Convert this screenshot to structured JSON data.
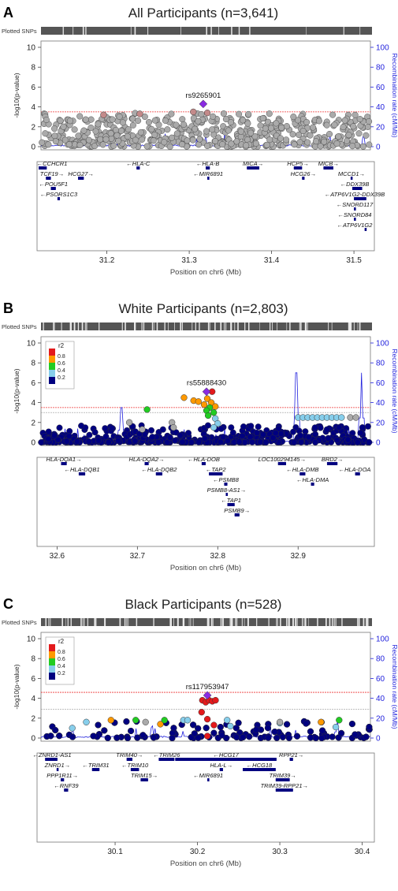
{
  "panels": [
    {
      "letter": "A",
      "title": "All Participants (n=3,641)",
      "plotted_snps_label": "Plotted SNPs",
      "lead_snp": "rs9265901",
      "ylabel": "-log10(p-value)",
      "ylabel_right": "Recombination rate (cM/Mb)",
      "xlabel": "Position on chr6 (Mb)",
      "has_legend": false
    },
    {
      "letter": "B",
      "title": "White Participants (n=2,803)",
      "plotted_snps_label": "Plotted SNPs",
      "lead_snp": "rs55888430",
      "ylabel": "-log10(p-value)",
      "ylabel_right": "Recombination rate (cM/Mb)",
      "xlabel": "Position on chr6 (Mb)",
      "has_legend": true
    },
    {
      "letter": "C",
      "title": "Black Participants (n=528)",
      "plotted_snps_label": "Plotted SNPs",
      "lead_snp": "rs117953947",
      "ylabel": "-log10(p-value)",
      "ylabel_right": "Recombination rate (cM/Mb)",
      "xlabel": "Position on chr6 (Mb)",
      "has_legend": true
    }
  ],
  "legend": {
    "title": "r2",
    "labels": [
      "0.8",
      "0.6",
      "0.4",
      "0.2"
    ],
    "colors": [
      "#e31a1c",
      "#ff9900",
      "#22cc22",
      "#87ceeb",
      "#000080"
    ]
  },
  "colors": {
    "recomb_line": "#2222dd",
    "sig_line": "#ee3333",
    "sugg_line": "#999999",
    "grey_point": "#aaaaaa",
    "lead": "#8a2be2",
    "gene": "#000080"
  },
  "chart_data": [
    {
      "type": "scatter",
      "title": "All Participants (n=3,641)",
      "xlabel": "Position on chr6 (Mb)",
      "ylabel": "-log10(p-value)",
      "y2label": "Recombination rate (cM/Mb)",
      "xlim": [
        31.12,
        31.52
      ],
      "ylim": [
        0,
        10
      ],
      "y2lim": [
        0,
        100
      ],
      "xticks": [
        "31.2",
        "31.3",
        "31.4",
        "31.5"
      ],
      "yticks": [
        "0",
        "2",
        "4",
        "6",
        "8",
        "10"
      ],
      "y2ticks": [
        "0",
        "20",
        "40",
        "60",
        "80",
        "100"
      ],
      "significance_line": 3.5,
      "suggestive_line": null,
      "lead_snp": {
        "name": "rs9265901",
        "x": 31.317,
        "y": 4.3
      },
      "highlight_points": [
        {
          "x": 31.305,
          "y": 3.5,
          "r2": "mid"
        },
        {
          "x": 31.322,
          "y": 3.4,
          "r2": "mid"
        },
        {
          "x": 31.24,
          "y": 3.3,
          "r2": "mid"
        },
        {
          "x": 31.196,
          "y": 3.2,
          "r2": "mid"
        }
      ],
      "genes": [
        {
          "name": "CCHCR1",
          "start": 31.11,
          "end": 31.127,
          "row": 0,
          "dir": "left"
        },
        {
          "name": "HLA-C",
          "start": 31.236,
          "end": 31.24,
          "row": 0,
          "dir": "left"
        },
        {
          "name": "HLA-B",
          "start": 31.32,
          "end": 31.325,
          "row": 0,
          "dir": "left"
        },
        {
          "name": "MICA",
          "start": 31.37,
          "end": 31.385,
          "row": 0,
          "dir": "right"
        },
        {
          "name": "HCP5",
          "start": 31.427,
          "end": 31.437,
          "row": 0,
          "dir": "right"
        },
        {
          "name": "MICB",
          "start": 31.463,
          "end": 31.475,
          "row": 0,
          "dir": "right"
        },
        {
          "name": "TCF19",
          "start": 31.126,
          "end": 31.132,
          "row": 1,
          "dir": "right"
        },
        {
          "name": "HCG27",
          "start": 31.165,
          "end": 31.172,
          "row": 1,
          "dir": "right"
        },
        {
          "name": "MIR6891",
          "start": 31.322,
          "end": 31.323,
          "row": 1,
          "dir": "left"
        },
        {
          "name": "HCG26",
          "start": 31.437,
          "end": 31.44,
          "row": 1,
          "dir": "right"
        },
        {
          "name": "MCCD1",
          "start": 31.496,
          "end": 31.498,
          "row": 1,
          "dir": "right"
        },
        {
          "name": "POU5F1",
          "start": 31.132,
          "end": 31.138,
          "row": 2,
          "dir": "left"
        },
        {
          "name": "DDX39B",
          "start": 31.498,
          "end": 31.51,
          "row": 2,
          "dir": "left"
        },
        {
          "name": "PSORS1C3",
          "start": 31.14,
          "end": 31.143,
          "row": 3,
          "dir": "left"
        },
        {
          "name": "ATP6V1G2-DDX39B",
          "start": 31.5,
          "end": 31.515,
          "row": 3,
          "dir": "left"
        },
        {
          "name": "SNORD117",
          "start": 31.5,
          "end": 31.5005,
          "row": 4,
          "dir": "left"
        },
        {
          "name": "SNORD84",
          "start": 31.5,
          "end": 31.5005,
          "row": 5,
          "dir": "left"
        },
        {
          "name": "ATP6V1G2",
          "start": 31.513,
          "end": 31.515,
          "row": 6,
          "dir": "left"
        }
      ],
      "recomb_peaks": []
    },
    {
      "type": "scatter",
      "title": "White Participants (n=2,803)",
      "xlabel": "Position on chr6 (Mb)",
      "ylabel": "-log10(p-value)",
      "y2label": "Recombination rate (cM/Mb)",
      "xlim": [
        32.58,
        32.99
      ],
      "ylim": [
        0,
        10
      ],
      "y2lim": [
        0,
        100
      ],
      "xticks": [
        "32.6",
        "32.7",
        "32.8",
        "32.9"
      ],
      "yticks": [
        "0",
        "2",
        "4",
        "6",
        "8",
        "10"
      ],
      "y2ticks": [
        "0",
        "20",
        "40",
        "60",
        "80",
        "100"
      ],
      "significance_line": 3.5,
      "suggestive_line": 3.0,
      "lead_snp": {
        "name": "rs55888430",
        "x": 32.786,
        "y": 5.1
      },
      "highlight_points": [
        {
          "x": 32.793,
          "y": 5.1,
          "r2": 0.9
        },
        {
          "x": 32.758,
          "y": 4.5,
          "r2": 0.7
        },
        {
          "x": 32.77,
          "y": 4.2,
          "r2": 0.7
        },
        {
          "x": 32.787,
          "y": 4.4,
          "r2": 0.7
        },
        {
          "x": 32.792,
          "y": 4.0,
          "r2": 0.7
        },
        {
          "x": 32.783,
          "y": 3.8,
          "r2": 0.7
        },
        {
          "x": 32.797,
          "y": 3.6,
          "r2": 0.7
        },
        {
          "x": 32.776,
          "y": 4.1,
          "r2": 0.7
        },
        {
          "x": 32.79,
          "y": 3.5,
          "r2": 0.5
        },
        {
          "x": 32.786,
          "y": 3.2,
          "r2": 0.5
        },
        {
          "x": 32.795,
          "y": 3.0,
          "r2": 0.5
        },
        {
          "x": 32.788,
          "y": 2.7,
          "r2": 0.5
        },
        {
          "x": 32.712,
          "y": 3.3,
          "r2": 0.5
        },
        {
          "x": 32.797,
          "y": 2.4,
          "r2": 0.3
        },
        {
          "x": 32.8,
          "y": 1.9,
          "r2": 0.3
        },
        {
          "x": 32.795,
          "y": 1.5,
          "r2": 0.3
        },
        {
          "x": 32.9,
          "y": 2.5,
          "r2": 0.3
        },
        {
          "x": 32.906,
          "y": 2.5,
          "r2": 0.3
        },
        {
          "x": 32.912,
          "y": 2.5,
          "r2": 0.3
        },
        {
          "x": 32.918,
          "y": 2.5,
          "r2": 0.3
        },
        {
          "x": 32.924,
          "y": 2.5,
          "r2": 0.3
        },
        {
          "x": 32.93,
          "y": 2.5,
          "r2": 0.3
        },
        {
          "x": 32.936,
          "y": 2.5,
          "r2": 0.3
        },
        {
          "x": 32.942,
          "y": 2.5,
          "r2": 0.3
        },
        {
          "x": 32.948,
          "y": 2.5,
          "r2": 0.3
        },
        {
          "x": 32.954,
          "y": 2.5,
          "r2": 0.3
        },
        {
          "x": 32.965,
          "y": 2.5,
          "r2": "grey"
        },
        {
          "x": 32.972,
          "y": 2.5,
          "r2": "grey"
        },
        {
          "x": 32.743,
          "y": 2.0,
          "r2": "grey"
        },
        {
          "x": 32.69,
          "y": 2.0,
          "r2": "grey"
        },
        {
          "x": 32.706,
          "y": 1.3,
          "r2": "grey"
        },
        {
          "x": 32.745,
          "y": 1.5,
          "r2": "grey"
        }
      ],
      "genes": [
        {
          "name": "HLA-DQA1",
          "start": 32.605,
          "end": 32.612,
          "row": 0,
          "dir": "right"
        },
        {
          "name": "HLA-DQA2",
          "start": 32.709,
          "end": 32.714,
          "row": 0,
          "dir": "right"
        },
        {
          "name": "HLA-DOB",
          "start": 32.78,
          "end": 32.785,
          "row": 0,
          "dir": "left"
        },
        {
          "name": "LOC100294145",
          "start": 32.875,
          "end": 32.885,
          "row": 0,
          "dir": "right"
        },
        {
          "name": "BRD2",
          "start": 32.936,
          "end": 32.949,
          "row": 0,
          "dir": "right"
        },
        {
          "name": "HLA-DQB1",
          "start": 32.627,
          "end": 32.635,
          "row": 1,
          "dir": "left"
        },
        {
          "name": "HLA-DQB2",
          "start": 32.723,
          "end": 32.731,
          "row": 1,
          "dir": "left"
        },
        {
          "name": "TAP2",
          "start": 32.789,
          "end": 32.806,
          "row": 1,
          "dir": "left"
        },
        {
          "name": "HLA-DMB",
          "start": 32.902,
          "end": 32.909,
          "row": 1,
          "dir": "left"
        },
        {
          "name": "HLA-DOA",
          "start": 32.971,
          "end": 32.977,
          "row": 1,
          "dir": "left"
        },
        {
          "name": "PSMB8",
          "start": 32.808,
          "end": 32.812,
          "row": 2,
          "dir": "left"
        },
        {
          "name": "HLA-DMA",
          "start": 32.916,
          "end": 32.92,
          "row": 2,
          "dir": "left"
        },
        {
          "name": "PSMB8-AS1",
          "start": 32.81,
          "end": 32.811,
          "row": 3,
          "dir": "right"
        },
        {
          "name": "TAP1",
          "start": 32.812,
          "end": 32.821,
          "row": 4,
          "dir": "left"
        },
        {
          "name": "PSMB9",
          "start": 32.821,
          "end": 32.827,
          "row": 5,
          "dir": "right"
        }
      ],
      "recomb_peaks": [
        {
          "x": 32.68,
          "y": 35
        },
        {
          "x": 32.898,
          "y": 70
        },
        {
          "x": 32.979,
          "y": 70
        }
      ]
    },
    {
      "type": "scatter",
      "title": "Black Participants (n=528)",
      "xlabel": "Position on chr6 (Mb)",
      "ylabel": "-log10(p-value)",
      "y2label": "Recombination rate (cM/Mb)",
      "xlim": [
        30.01,
        30.41
      ],
      "ylim": [
        0,
        10
      ],
      "y2lim": [
        0,
        100
      ],
      "xticks": [
        "30.1",
        "30.2",
        "30.3",
        "30.4"
      ],
      "yticks": [
        "0",
        "2",
        "4",
        "6",
        "8",
        "10"
      ],
      "y2ticks": [
        "0",
        "20",
        "40",
        "60",
        "80",
        "100"
      ],
      "significance_line": 4.6,
      "suggestive_line": 2.9,
      "lead_snp": {
        "name": "rs117953947",
        "x": 30.212,
        "y": 4.3
      },
      "highlight_points": [
        {
          "x": 30.206,
          "y": 3.8,
          "r2": 0.9
        },
        {
          "x": 30.21,
          "y": 3.6,
          "r2": 0.9
        },
        {
          "x": 30.214,
          "y": 3.8,
          "r2": 0.9
        },
        {
          "x": 30.218,
          "y": 3.7,
          "r2": 0.9
        },
        {
          "x": 30.222,
          "y": 3.8,
          "r2": 0.9
        },
        {
          "x": 30.205,
          "y": 2.6,
          "r2": 0.9
        },
        {
          "x": 30.212,
          "y": 1.9,
          "r2": 0.9
        },
        {
          "x": 30.212,
          "y": 0.2,
          "r2": 0.9
        },
        {
          "x": 30.22,
          "y": 1.3,
          "r2": 0.9
        },
        {
          "x": 30.095,
          "y": 1.8,
          "r2": 0.7
        },
        {
          "x": 30.155,
          "y": 1.4,
          "r2": 0.7
        },
        {
          "x": 30.35,
          "y": 1.6,
          "r2": 0.7
        },
        {
          "x": 30.125,
          "y": 1.8,
          "r2": 0.5
        },
        {
          "x": 30.16,
          "y": 1.8,
          "r2": 0.5
        },
        {
          "x": 30.372,
          "y": 1.8,
          "r2": 0.5
        },
        {
          "x": 30.065,
          "y": 1.6,
          "r2": 0.3
        },
        {
          "x": 30.183,
          "y": 1.8,
          "r2": 0.3
        },
        {
          "x": 30.188,
          "y": 1.8,
          "r2": 0.3
        },
        {
          "x": 30.3,
          "y": 1.5,
          "r2": 0.3
        },
        {
          "x": 30.24,
          "y": 1.2,
          "r2": 0.3
        },
        {
          "x": 30.048,
          "y": 1.0,
          "r2": 0.3
        },
        {
          "x": 30.236,
          "y": 1.8,
          "r2": 0.3
        },
        {
          "x": 30.368,
          "y": 1.1,
          "r2": 0.3
        },
        {
          "x": 30.137,
          "y": 1.6,
          "r2": "grey"
        },
        {
          "x": 30.3,
          "y": 1.6,
          "r2": "grey"
        }
      ],
      "genes": [
        {
          "name": "ZNRD1-AS1",
          "start": 30.015,
          "end": 30.03,
          "row": 0,
          "dir": "left"
        },
        {
          "name": "TRIM40",
          "start": 30.114,
          "end": 30.121,
          "row": 0,
          "dir": "right"
        },
        {
          "name": "TRIM26",
          "start": 30.153,
          "end": 30.172,
          "row": 0,
          "dir": "left"
        },
        {
          "name": "HCG17",
          "start": 30.173,
          "end": 30.296,
          "row": 0,
          "dir": "left"
        },
        {
          "name": "RPP21",
          "start": 30.312,
          "end": 30.316,
          "row": 0,
          "dir": "right"
        },
        {
          "name": "ZNRD1",
          "start": 30.029,
          "end": 30.031,
          "row": 1,
          "dir": "right"
        },
        {
          "name": "TRIM31",
          "start": 30.072,
          "end": 30.081,
          "row": 1,
          "dir": "left"
        },
        {
          "name": "TRIM10",
          "start": 30.119,
          "end": 30.129,
          "row": 1,
          "dir": "left"
        },
        {
          "name": "HLA-L",
          "start": 30.227,
          "end": 30.231,
          "row": 1,
          "dir": "right"
        },
        {
          "name": "HCG18",
          "start": 30.255,
          "end": 30.295,
          "row": 1,
          "dir": "left"
        },
        {
          "name": "PPP1R11",
          "start": 30.034,
          "end": 30.038,
          "row": 2,
          "dir": "right"
        },
        {
          "name": "TRIM15",
          "start": 30.131,
          "end": 30.14,
          "row": 2,
          "dir": "right"
        },
        {
          "name": "MIR6891",
          "start": 30.212,
          "end": 30.213,
          "row": 2,
          "dir": "left"
        },
        {
          "name": "TRIM39",
          "start": 30.295,
          "end": 30.312,
          "row": 2,
          "dir": "right"
        },
        {
          "name": "RNF39",
          "start": 30.038,
          "end": 30.043,
          "row": 3,
          "dir": "left"
        },
        {
          "name": "TRIM39-RPP21",
          "start": 30.295,
          "end": 30.316,
          "row": 3,
          "dir": "right"
        }
      ],
      "recomb_peaks": [
        {
          "x": 30.37,
          "y": 18
        }
      ]
    }
  ]
}
